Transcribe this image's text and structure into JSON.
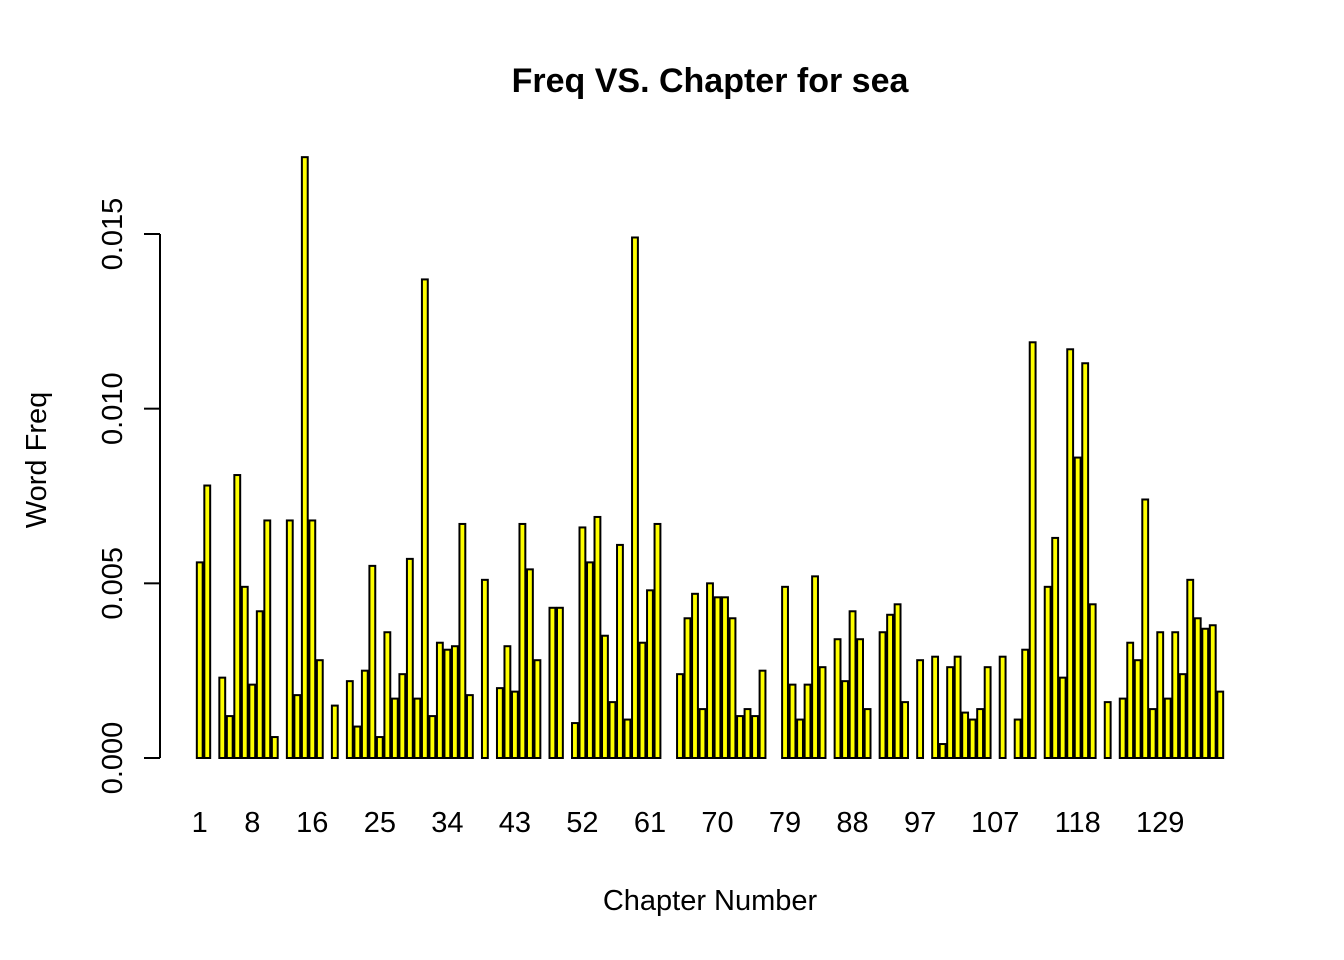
{
  "chart_data": {
    "type": "bar",
    "title": "Freq VS. Chapter for sea",
    "xlabel": "Chapter Number",
    "ylabel": "Word Freq",
    "ylim": [
      0,
      0.0175
    ],
    "y_ticks": [
      "0.000",
      "0.005",
      "0.010",
      "0.015"
    ],
    "x_tick_labels": [
      "1",
      "8",
      "16",
      "25",
      "34",
      "43",
      "52",
      "61",
      "70",
      "79",
      "88",
      "97",
      "107",
      "118",
      "129"
    ],
    "bar_color": "#ffff00",
    "bar_border": "#000000",
    "values": [
      0.0056,
      0.0078,
      0,
      0.0023,
      0.0012,
      0.0081,
      0.0049,
      0.0021,
      0.0042,
      0.0068,
      0.0006,
      0,
      0.0068,
      0.0018,
      0.0172,
      0.0068,
      0.0028,
      0,
      0.0015,
      0,
      0.0022,
      0.0009,
      0.0025,
      0.0055,
      0.0006,
      0.0036,
      0.0017,
      0.0024,
      0.0057,
      0.0017,
      0.0137,
      0.0012,
      0.0033,
      0.0031,
      0.0032,
      0.0067,
      0.0018,
      0,
      0.0051,
      0,
      0.002,
      0.0032,
      0.0019,
      0.0067,
      0.0054,
      0.0028,
      0,
      0.0043,
      0.0043,
      0,
      0.001,
      0.0066,
      0.0056,
      0.0069,
      0.0035,
      0.0016,
      0.0061,
      0.0011,
      0.0149,
      0.0033,
      0.0048,
      0.0067,
      0,
      0,
      0.0024,
      0.004,
      0.0047,
      0.0014,
      0.005,
      0.0046,
      0.0046,
      0.004,
      0.0012,
      0.0014,
      0.0012,
      0.0025,
      0,
      0,
      0.0049,
      0.0021,
      0.0011,
      0.0021,
      0.0052,
      0.0026,
      0,
      0.0034,
      0.0022,
      0.0042,
      0.0034,
      0.0014,
      0,
      0.0036,
      0.0041,
      0.0044,
      0.0016,
      0,
      0.0028,
      0,
      0.0029,
      0.0004,
      0.0026,
      0.0029,
      0.0013,
      0.0011,
      0.0014,
      0.0026,
      0,
      0.0029,
      0,
      0.0011,
      0.0031,
      0.0119,
      0,
      0.0049,
      0.0063,
      0.0023,
      0.0117,
      0.0086,
      0.0113,
      0.0044,
      0,
      0.0016,
      0,
      0.0017,
      0.0033,
      0.0028,
      0.0074,
      0.0014,
      0.0036,
      0.0017,
      0.0036,
      0.0024,
      0.0051,
      0.004,
      0.0037,
      0.0038,
      0.0019
    ]
  }
}
